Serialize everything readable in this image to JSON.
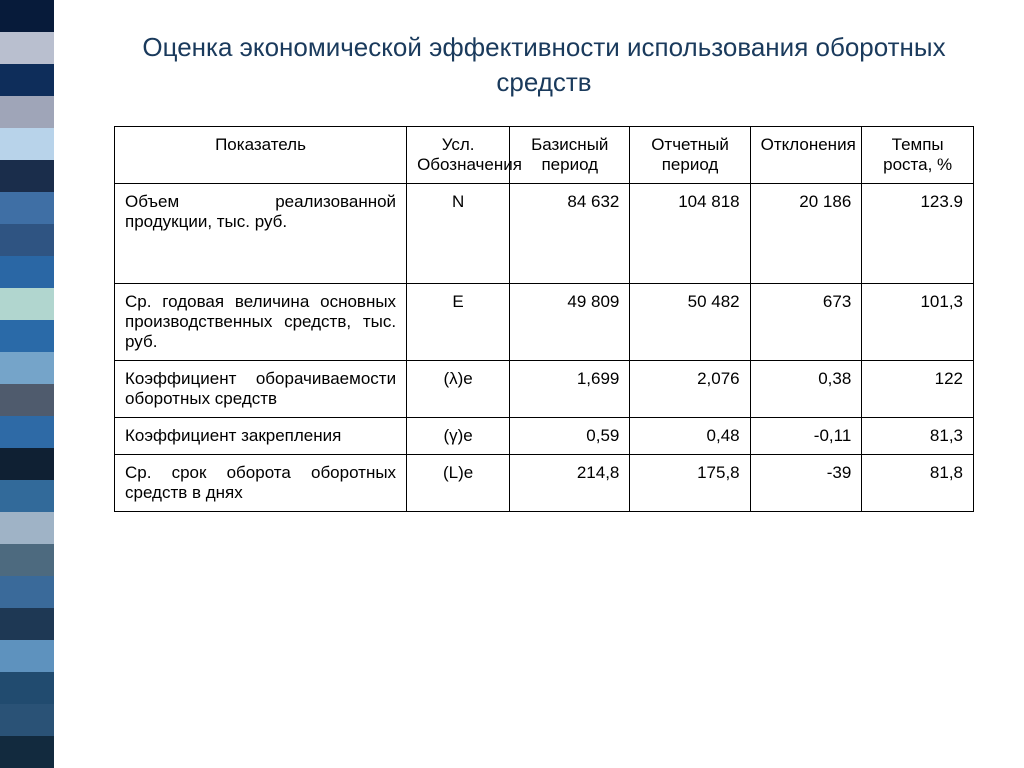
{
  "title": "Оценка экономической эффективности использования оборотных средств",
  "stripes": {
    "colors": [
      "#071b3a",
      "#b9bfcf",
      "#0e2d5a",
      "#9fa5b8",
      "#b8d3ea",
      "#1a2d4b",
      "#3f6fa5",
      "#2f5482",
      "#2a67a5",
      "#b1d6cf",
      "#2a6aa8",
      "#75a4c9",
      "#4f5b6d",
      "#2e6aa6",
      "#0f2033",
      "#326a9a",
      "#9fb3c6",
      "#4d6a7f",
      "#3a6a9a",
      "#1e3854",
      "#5e92be",
      "#214b6f",
      "#2a5276",
      "#122a3e"
    ]
  },
  "table": {
    "columns": [
      "Показатель",
      "Усл. Обозначения",
      "Базисный период",
      "Отчетный период",
      "Отклонения",
      "Темпы роста, %"
    ],
    "rows": [
      {
        "label": "Объем реализованной продукции, тыс. руб.",
        "symbol": "N",
        "base": "84 632",
        "report": "104 818",
        "deviation": "20 186",
        "rate": "123.9",
        "tall": true
      },
      {
        "label": "Ср. годовая величина основных производственных средств, тыс. руб.",
        "symbol": "E",
        "base": "49 809",
        "report": "50 482",
        "deviation": "673",
        "rate": "101,3",
        "tall": false
      },
      {
        "label": "Коэффициент оборачиваемости оборотных средств",
        "symbol": "(λ)e",
        "base": "1,699",
        "report": "2,076",
        "deviation": "0,38",
        "rate": "122",
        "tall": false
      },
      {
        "label": "Коэффициент закрепления",
        "symbol": "(γ)e",
        "base": "0,59",
        "report": "0,48",
        "deviation": "-0,11",
        "rate": "81,3",
        "tall": false
      },
      {
        "label": "Ср. срок оборота оборотных средств в днях",
        "symbol": "(L)e",
        "base": "214,8",
        "report": "175,8",
        "deviation": "-39",
        "rate": "81,8",
        "tall": false
      }
    ]
  }
}
